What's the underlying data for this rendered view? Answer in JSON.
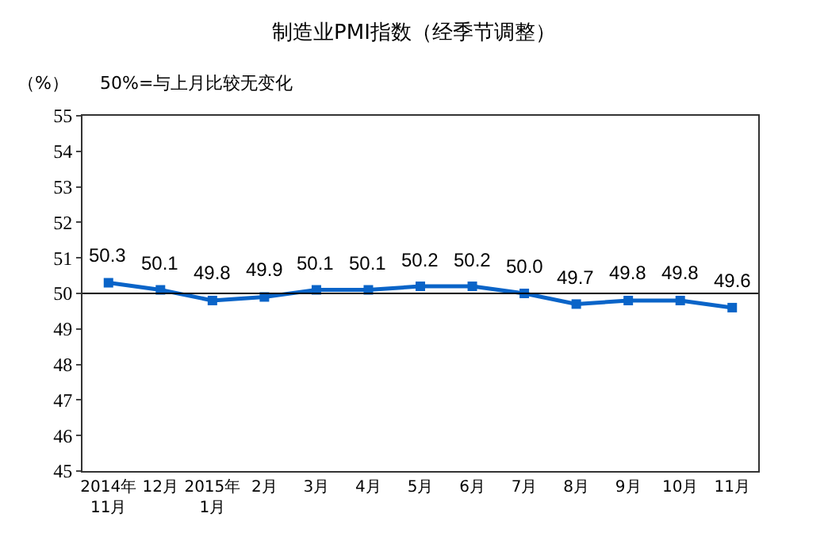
{
  "chart_data": {
    "type": "line",
    "title": "制造业PMI指数（经季节调整）",
    "ylabel": "（%）",
    "annotations": [
      "50%=与上月比较无变化"
    ],
    "categories": [
      "2014年\n11月",
      "12月",
      "2015年\n1月",
      "2月",
      "3月",
      "4月",
      "5月",
      "6月",
      "7月",
      "8月",
      "9月",
      "10月",
      "11月"
    ],
    "series": [
      {
        "color": "#0a64c8",
        "values": [
          50.3,
          50.1,
          49.8,
          49.9,
          50.1,
          50.1,
          50.2,
          50.2,
          50.0,
          49.7,
          49.8,
          49.8,
          49.6
        ],
        "value_labels": [
          "50.3",
          "50.1",
          "49.8",
          "49.9",
          "50.1",
          "50.1",
          "50.2",
          "50.2",
          "50.0",
          "49.7",
          "49.8",
          "49.8",
          "49.6"
        ]
      }
    ],
    "ylim": [
      45,
      55
    ],
    "yticks": [
      45,
      46,
      47,
      48,
      49,
      50,
      51,
      52,
      53,
      54,
      55
    ],
    "ref_lines": [
      {
        "axis": "y",
        "value": 50,
        "color": "#000000"
      }
    ],
    "marker": "square",
    "line_style": "solid"
  }
}
